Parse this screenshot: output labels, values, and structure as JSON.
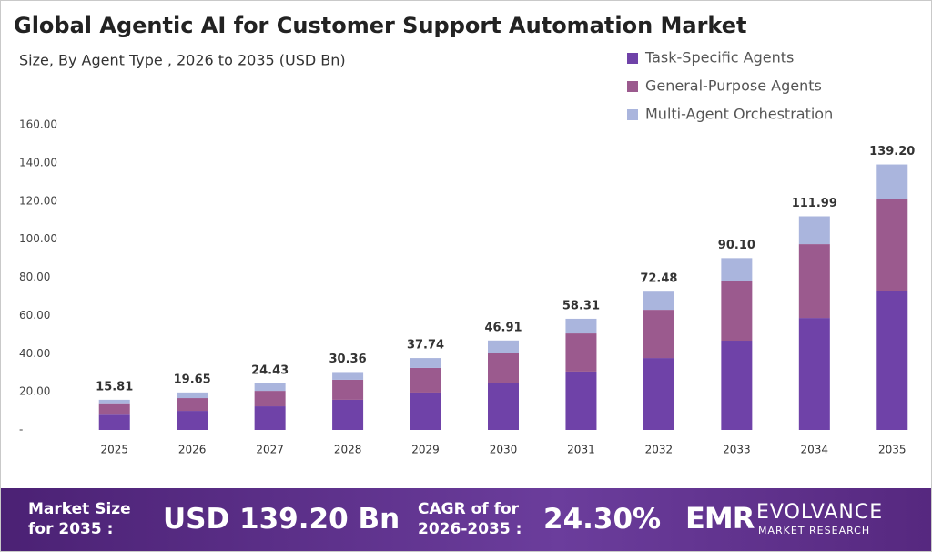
{
  "chart_data": {
    "type": "stacked_bar",
    "title": "Global Agentic AI for Customer Support Automation Market",
    "subtitle": "Size, By Agent Type , 2026 to 2035 (USD Bn)",
    "categories": [
      "2025",
      "2026",
      "2027",
      "2028",
      "2029",
      "2030",
      "2031",
      "2032",
      "2033",
      "2034",
      "2035"
    ],
    "series": [
      {
        "name": "Task-Specific Agents",
        "color": "#6f42a8",
        "values": [
          8.0,
          10.0,
          12.4,
          15.8,
          19.6,
          24.4,
          30.6,
          37.7,
          46.8,
          58.7,
          72.6
        ]
      },
      {
        "name": "General-Purpose Agents",
        "color": "#9b5a8e",
        "values": [
          6.0,
          6.7,
          8.1,
          10.5,
          12.9,
          16.2,
          20.0,
          25.3,
          31.5,
          38.7,
          48.7
        ]
      },
      {
        "name": "Multi-Agent Orchestration",
        "color": "#aab5dd",
        "values": [
          1.81,
          2.95,
          3.9,
          4.06,
          5.2,
          6.3,
          7.7,
          9.5,
          11.8,
          14.6,
          17.9
        ]
      }
    ],
    "totals": [
      15.81,
      19.65,
      24.43,
      30.36,
      37.74,
      46.91,
      58.31,
      72.48,
      90.1,
      111.99,
      139.2
    ],
    "value_labels": [
      "15.81",
      "19.65",
      "24.43",
      "30.36",
      "37.74",
      "46.91",
      "58.31",
      "72.48",
      "90.10",
      "111.99",
      "139.20"
    ],
    "ylim": [
      0,
      160
    ],
    "yticks": [
      {
        "value": 0,
        "label": "-"
      },
      {
        "value": 20,
        "label": "20.00"
      },
      {
        "value": 40,
        "label": "40.00"
      },
      {
        "value": 60,
        "label": "60.00"
      },
      {
        "value": 80,
        "label": "80.00"
      },
      {
        "value": 100,
        "label": "100.00"
      },
      {
        "value": 120,
        "label": "120.00"
      },
      {
        "value": 140,
        "label": "140.00"
      },
      {
        "value": 160,
        "label": "160.00"
      }
    ],
    "grid": false,
    "legend": "top-right"
  },
  "footer": {
    "market_label": "Market Size for 2035 :",
    "market_value": "USD 139.20 Bn",
    "cagr_label": "CAGR of for 2026-2035 :",
    "cagr_value": "24.30%",
    "logo_mark": "EMR",
    "logo_name": "EVOLVANCE",
    "logo_tag": "MARKET RESEARCH"
  }
}
